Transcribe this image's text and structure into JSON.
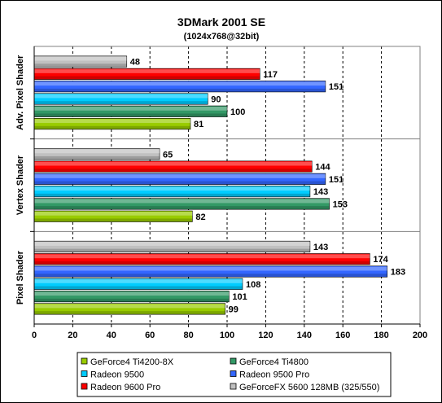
{
  "chart_data": {
    "type": "bar",
    "orientation": "horizontal",
    "title": "3DMark 2001 SE",
    "subtitle": "(1024x768@32bit)",
    "categories": [
      "Adv. Pixel Shader",
      "Vertex Shader",
      "Pixel Shader"
    ],
    "xlim": [
      0,
      200
    ],
    "xticks": [
      0,
      20,
      40,
      60,
      80,
      100,
      120,
      140,
      160,
      180,
      200
    ],
    "grid": true,
    "legend_position": "bottom",
    "series": [
      {
        "name": "GeForce4 Ti4200-8X",
        "color": "#99cc00",
        "values": [
          81,
          82,
          99
        ]
      },
      {
        "name": "GeForce4 Ti4800",
        "color": "#339966",
        "values": [
          100,
          153,
          101
        ]
      },
      {
        "name": "Radeon 9500",
        "color": "#00ccff",
        "values": [
          90,
          143,
          108
        ]
      },
      {
        "name": "Radeon 9500 Pro",
        "color": "#3366ff",
        "values": [
          151,
          151,
          183
        ]
      },
      {
        "name": "Radeon 9600 Pro",
        "color": "#ff0000",
        "values": [
          117,
          144,
          174
        ]
      },
      {
        "name": "GeForceFX 5600 128MB (325/550)",
        "color": "#c0c0c0",
        "values": [
          48,
          65,
          143
        ]
      }
    ]
  }
}
